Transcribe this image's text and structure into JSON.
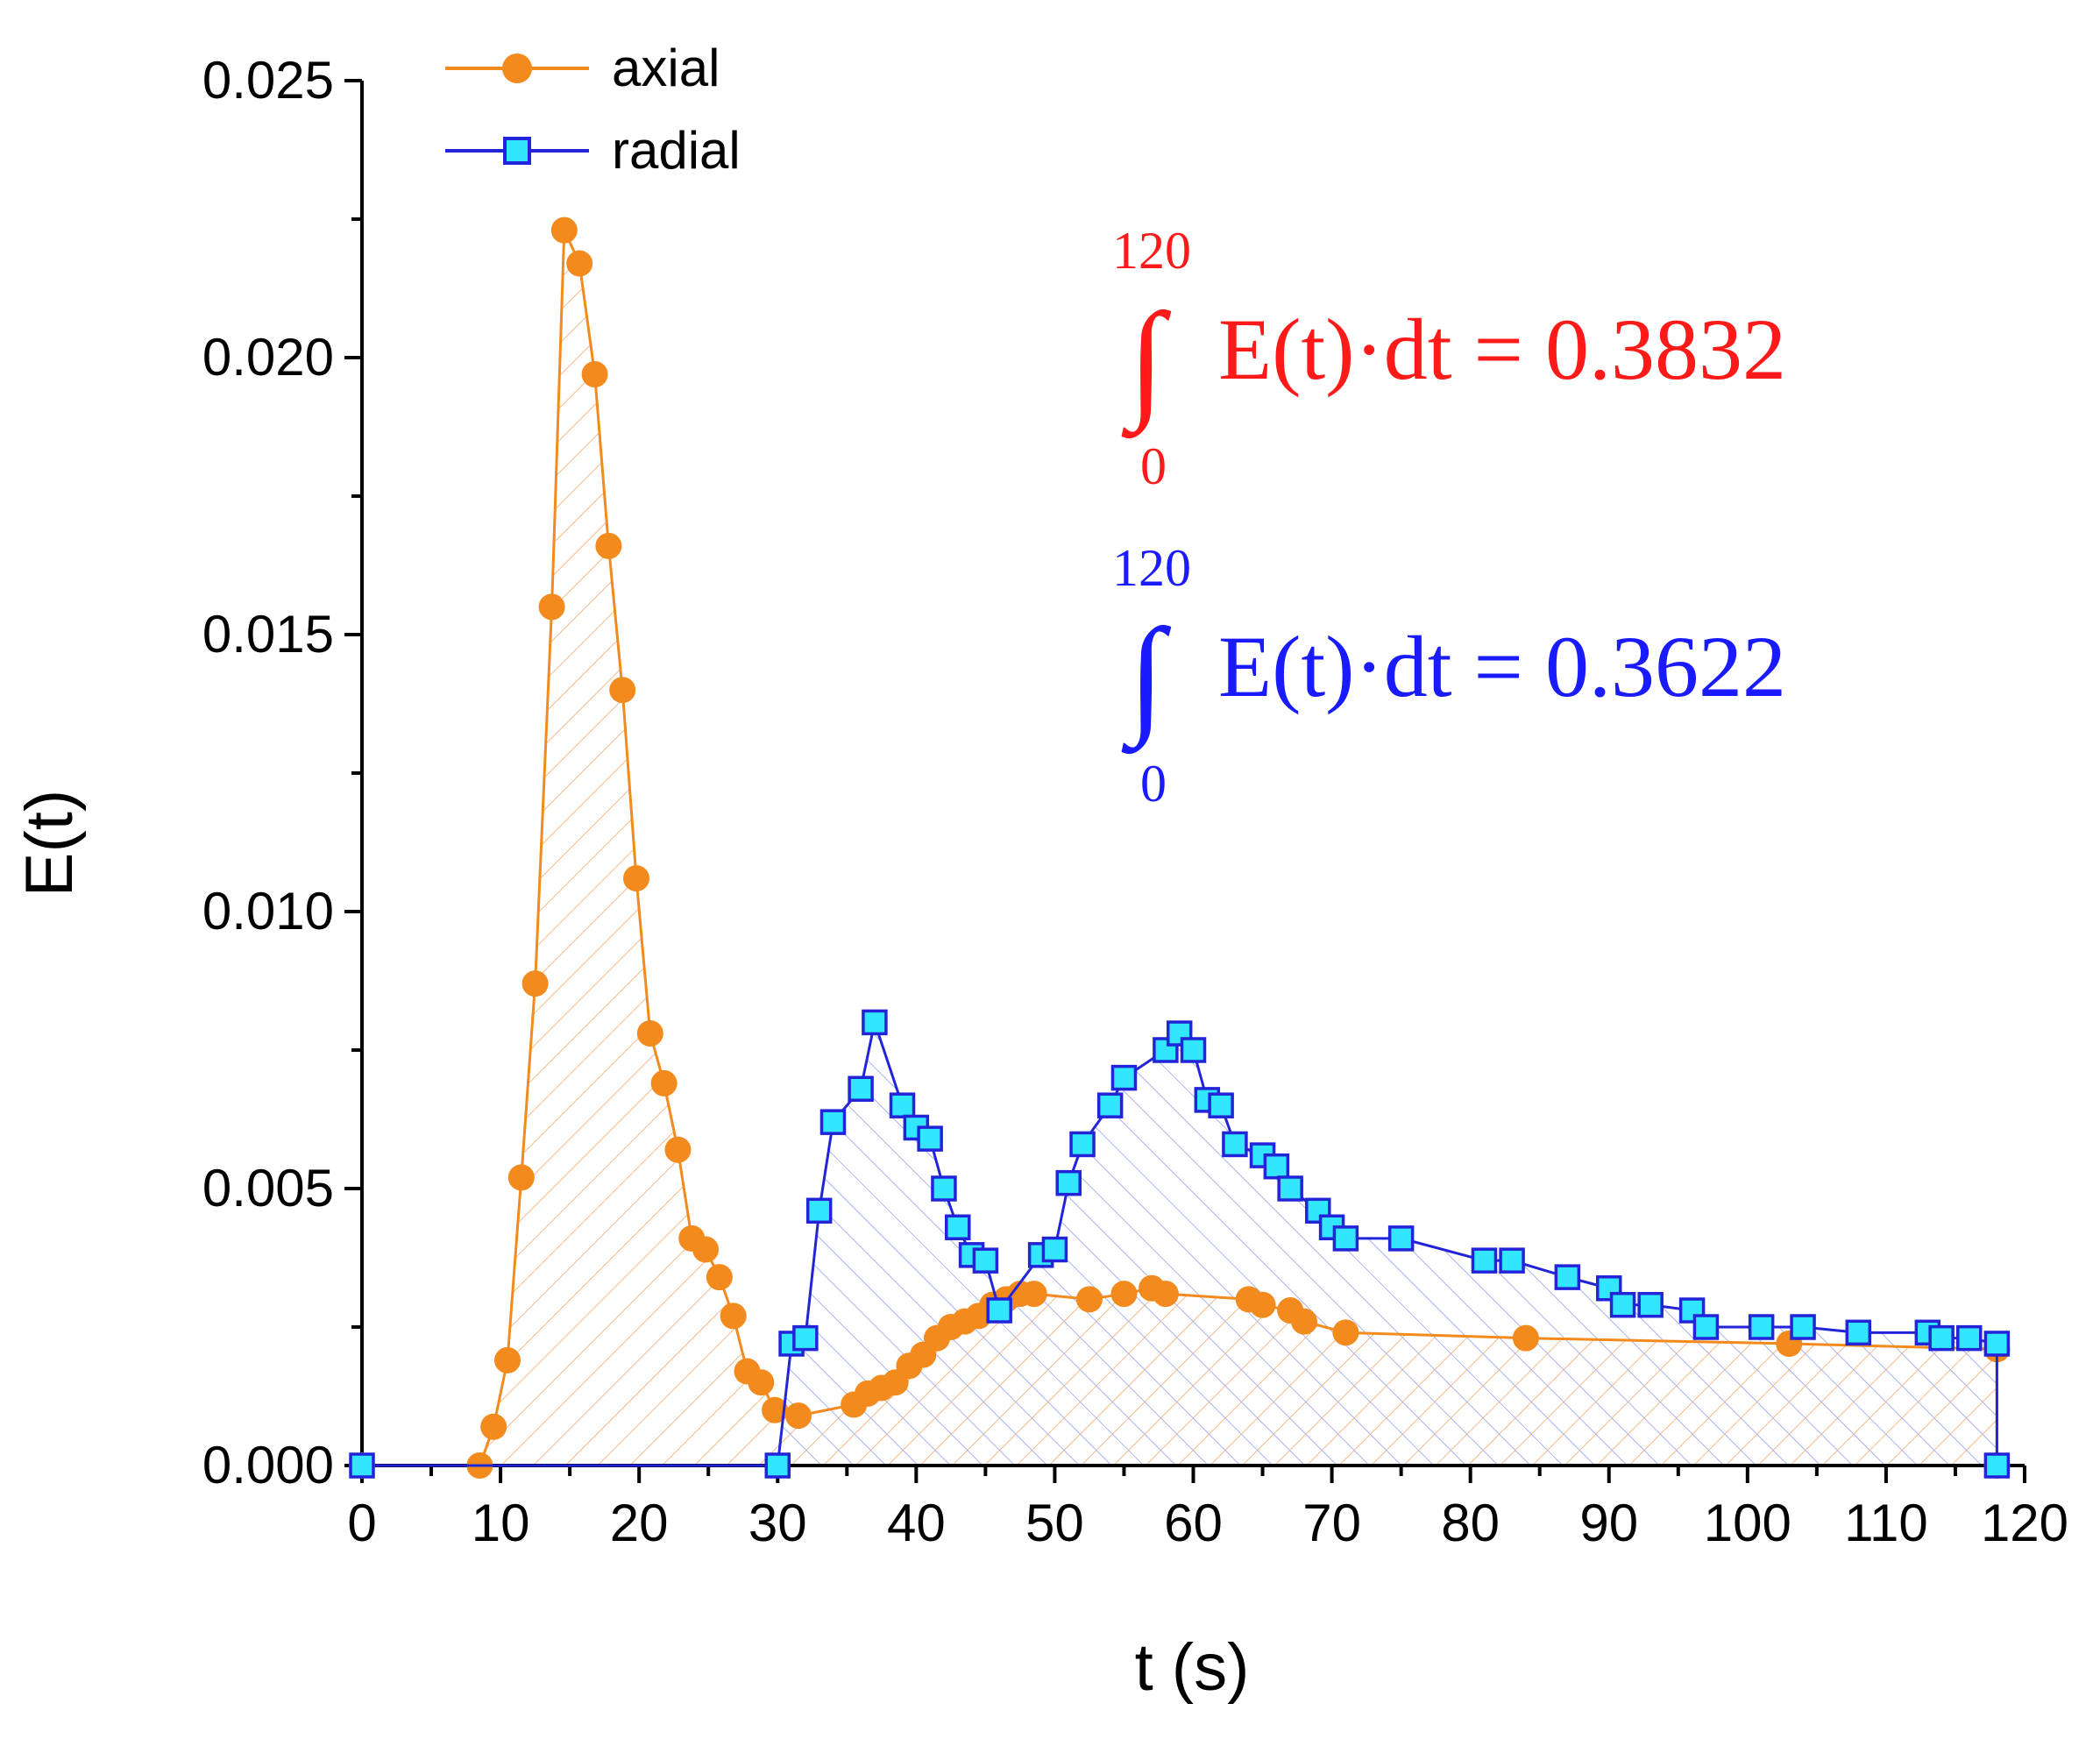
{
  "chart_data": {
    "type": "line",
    "xlabel": "t (s)",
    "ylabel": "E(t)",
    "xlim": [
      0,
      120
    ],
    "ylim": [
      0,
      0.025
    ],
    "x_ticks": [
      "0",
      "10",
      "20",
      "30",
      "40",
      "50",
      "60",
      "70",
      "80",
      "90",
      "100",
      "110",
      "120"
    ],
    "y_ticks": [
      "0.000",
      "0.005",
      "0.010",
      "0.015",
      "0.020",
      "0.025"
    ],
    "legend_position": "top-left",
    "series": [
      {
        "name": "axial",
        "marker": "circle",
        "color": "#f28a1e",
        "points": [
          [
            0,
            0
          ],
          [
            8.5,
            0
          ],
          [
            9.5,
            0.0007
          ],
          [
            10.5,
            0.0019
          ],
          [
            11.5,
            0.0052
          ],
          [
            12.5,
            0.0087
          ],
          [
            13.7,
            0.0155
          ],
          [
            14.6,
            0.0223
          ],
          [
            15.7,
            0.0217
          ],
          [
            16.8,
            0.0197
          ],
          [
            17.8,
            0.0166
          ],
          [
            18.8,
            0.014
          ],
          [
            19.8,
            0.0106
          ],
          [
            20.8,
            0.0078
          ],
          [
            21.8,
            0.0069
          ],
          [
            22.8,
            0.0057
          ],
          [
            23.8,
            0.0041
          ],
          [
            24.8,
            0.0039
          ],
          [
            25.8,
            0.0034
          ],
          [
            26.8,
            0.0027
          ],
          [
            27.8,
            0.0017
          ],
          [
            28.8,
            0.0015
          ],
          [
            29.8,
            0.001
          ],
          [
            31.5,
            0.0009
          ],
          [
            35.5,
            0.0011
          ],
          [
            36.5,
            0.0013
          ],
          [
            37.5,
            0.0014
          ],
          [
            38.5,
            0.0015
          ],
          [
            39.5,
            0.0018
          ],
          [
            40.5,
            0.002
          ],
          [
            41.5,
            0.0023
          ],
          [
            42.5,
            0.0025
          ],
          [
            43.5,
            0.0026
          ],
          [
            44.5,
            0.0027
          ],
          [
            45.5,
            0.0029
          ],
          [
            46.5,
            0.003
          ],
          [
            47.5,
            0.0031
          ],
          [
            48.5,
            0.0031
          ],
          [
            52.5,
            0.003
          ],
          [
            55.0,
            0.0031
          ],
          [
            57.0,
            0.0032
          ],
          [
            58.0,
            0.0031
          ],
          [
            64.0,
            0.003
          ],
          [
            65.0,
            0.0029
          ],
          [
            67.0,
            0.0028
          ],
          [
            68.0,
            0.0026
          ],
          [
            71.0,
            0.0024
          ],
          [
            84.0,
            0.0023
          ],
          [
            103.0,
            0.0022
          ],
          [
            118.0,
            0.0021
          ],
          [
            118.0,
            0
          ]
        ]
      },
      {
        "name": "radial",
        "marker": "square",
        "color": "#2323d8",
        "marker_fill": "#33e6ff",
        "points": [
          [
            0,
            0
          ],
          [
            30,
            0
          ],
          [
            31,
            0.0022
          ],
          [
            32,
            0.0023
          ],
          [
            33,
            0.0046
          ],
          [
            34,
            0.0062
          ],
          [
            36,
            0.0068
          ],
          [
            37,
            0.008
          ],
          [
            39,
            0.0065
          ],
          [
            40,
            0.0061
          ],
          [
            41,
            0.0059
          ],
          [
            42,
            0.005
          ],
          [
            43,
            0.0043
          ],
          [
            44,
            0.0038
          ],
          [
            45,
            0.0037
          ],
          [
            46,
            0.0028
          ],
          [
            49,
            0.0038
          ],
          [
            50,
            0.0039
          ],
          [
            51,
            0.0051
          ],
          [
            52,
            0.0058
          ],
          [
            54,
            0.0065
          ],
          [
            55,
            0.007
          ],
          [
            58,
            0.0075
          ],
          [
            59,
            0.0078
          ],
          [
            60,
            0.0075
          ],
          [
            61,
            0.0066
          ],
          [
            62,
            0.0065
          ],
          [
            63,
            0.0058
          ],
          [
            65,
            0.0056
          ],
          [
            66,
            0.0054
          ],
          [
            67,
            0.005
          ],
          [
            69,
            0.0046
          ],
          [
            70,
            0.0043
          ],
          [
            71,
            0.0041
          ],
          [
            75,
            0.0041
          ],
          [
            81,
            0.0037
          ],
          [
            83,
            0.0037
          ],
          [
            87,
            0.0034
          ],
          [
            90,
            0.0032
          ],
          [
            91,
            0.0029
          ],
          [
            93,
            0.0029
          ],
          [
            96,
            0.0028
          ],
          [
            97,
            0.0025
          ],
          [
            101,
            0.0025
          ],
          [
            104,
            0.0025
          ],
          [
            108,
            0.0024
          ],
          [
            113,
            0.0024
          ],
          [
            114,
            0.0023
          ],
          [
            116,
            0.0023
          ],
          [
            118,
            0.0022
          ],
          [
            118,
            0
          ]
        ]
      }
    ],
    "annotations": [
      {
        "upper": "120",
        "lower": "0",
        "expression": "E(t)·dt = 0.3832",
        "color": "#ff1a1a"
      },
      {
        "upper": "120",
        "lower": "0",
        "expression": "E(t)·dt = 0.3622",
        "color": "#1a1aff"
      }
    ]
  }
}
